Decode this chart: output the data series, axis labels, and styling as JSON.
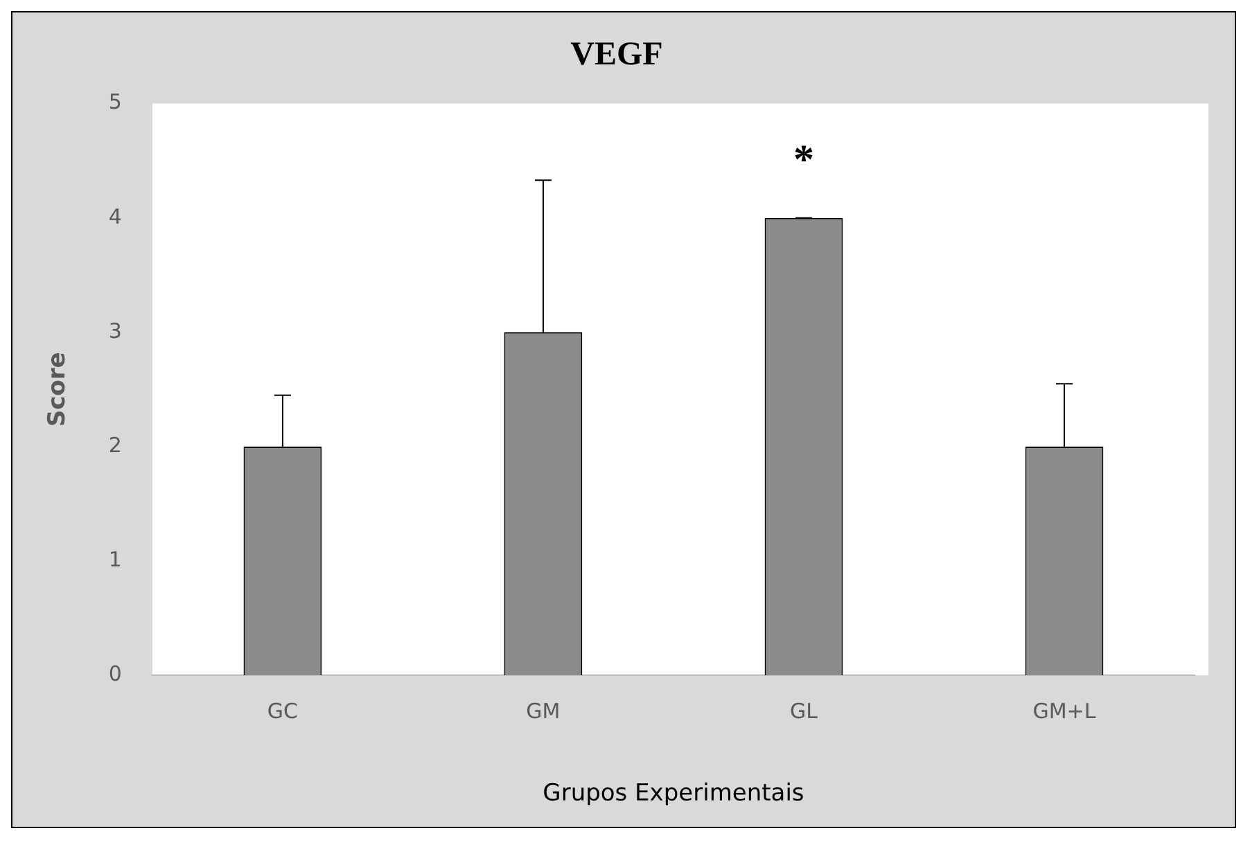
{
  "chart_data": {
    "type": "bar",
    "title": "VEGF",
    "xlabel": "Grupos Experimentais",
    "ylabel": "Score",
    "categories": [
      "GC",
      "GM",
      "GL",
      "GM+L"
    ],
    "values": [
      2,
      3,
      4,
      2
    ],
    "color": "#8c8c8c",
    "errors": [
      [
        2,
        2.45
      ],
      [
        3,
        4.33
      ],
      [
        4,
        4
      ],
      [
        2,
        2.55
      ]
    ],
    "ylim": [
      0,
      5
    ],
    "yticks": [
      0,
      1,
      2,
      3,
      4,
      5
    ],
    "annotations": [
      "*"
    ]
  }
}
